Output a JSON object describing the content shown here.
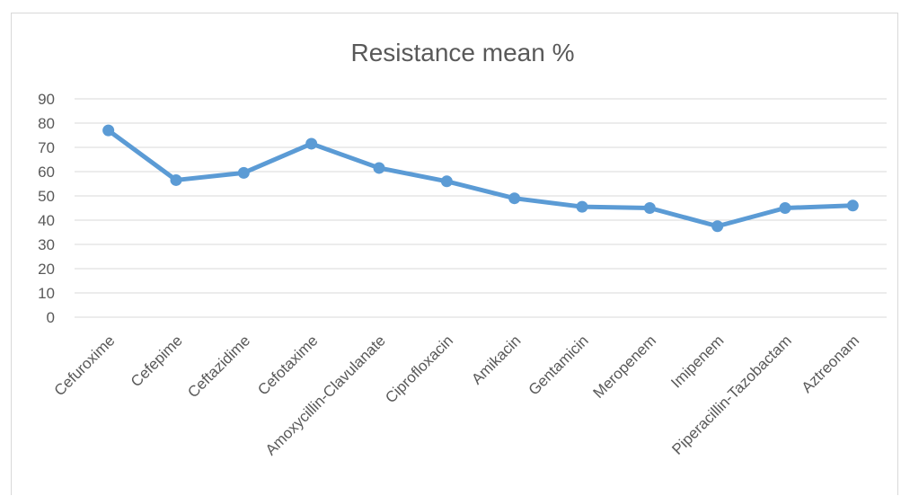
{
  "chart_data": {
    "type": "line",
    "title": "Resistance mean %",
    "xlabel": "",
    "ylabel": "",
    "ylim": [
      0,
      90
    ],
    "yticks": [
      0,
      10,
      20,
      30,
      40,
      50,
      60,
      70,
      80,
      90
    ],
    "grid": true,
    "legend": "none",
    "categories": [
      "Cefuroxime",
      "Cefepime",
      "Ceftazidime",
      "Cefotaxime",
      "Amoxycillin-Clavulanate",
      "Ciprofloxacin",
      "Amikacin",
      "Gentamicin",
      "Meropenem",
      "Imipenem",
      "Piperacillin-Tazobactam",
      "Aztreonam"
    ],
    "series": [
      {
        "values": [
          77,
          56.5,
          59.5,
          71.5,
          61.5,
          56,
          49,
          45.5,
          45,
          37.5,
          45,
          46
        ],
        "color": "#5b9bd5"
      }
    ]
  }
}
